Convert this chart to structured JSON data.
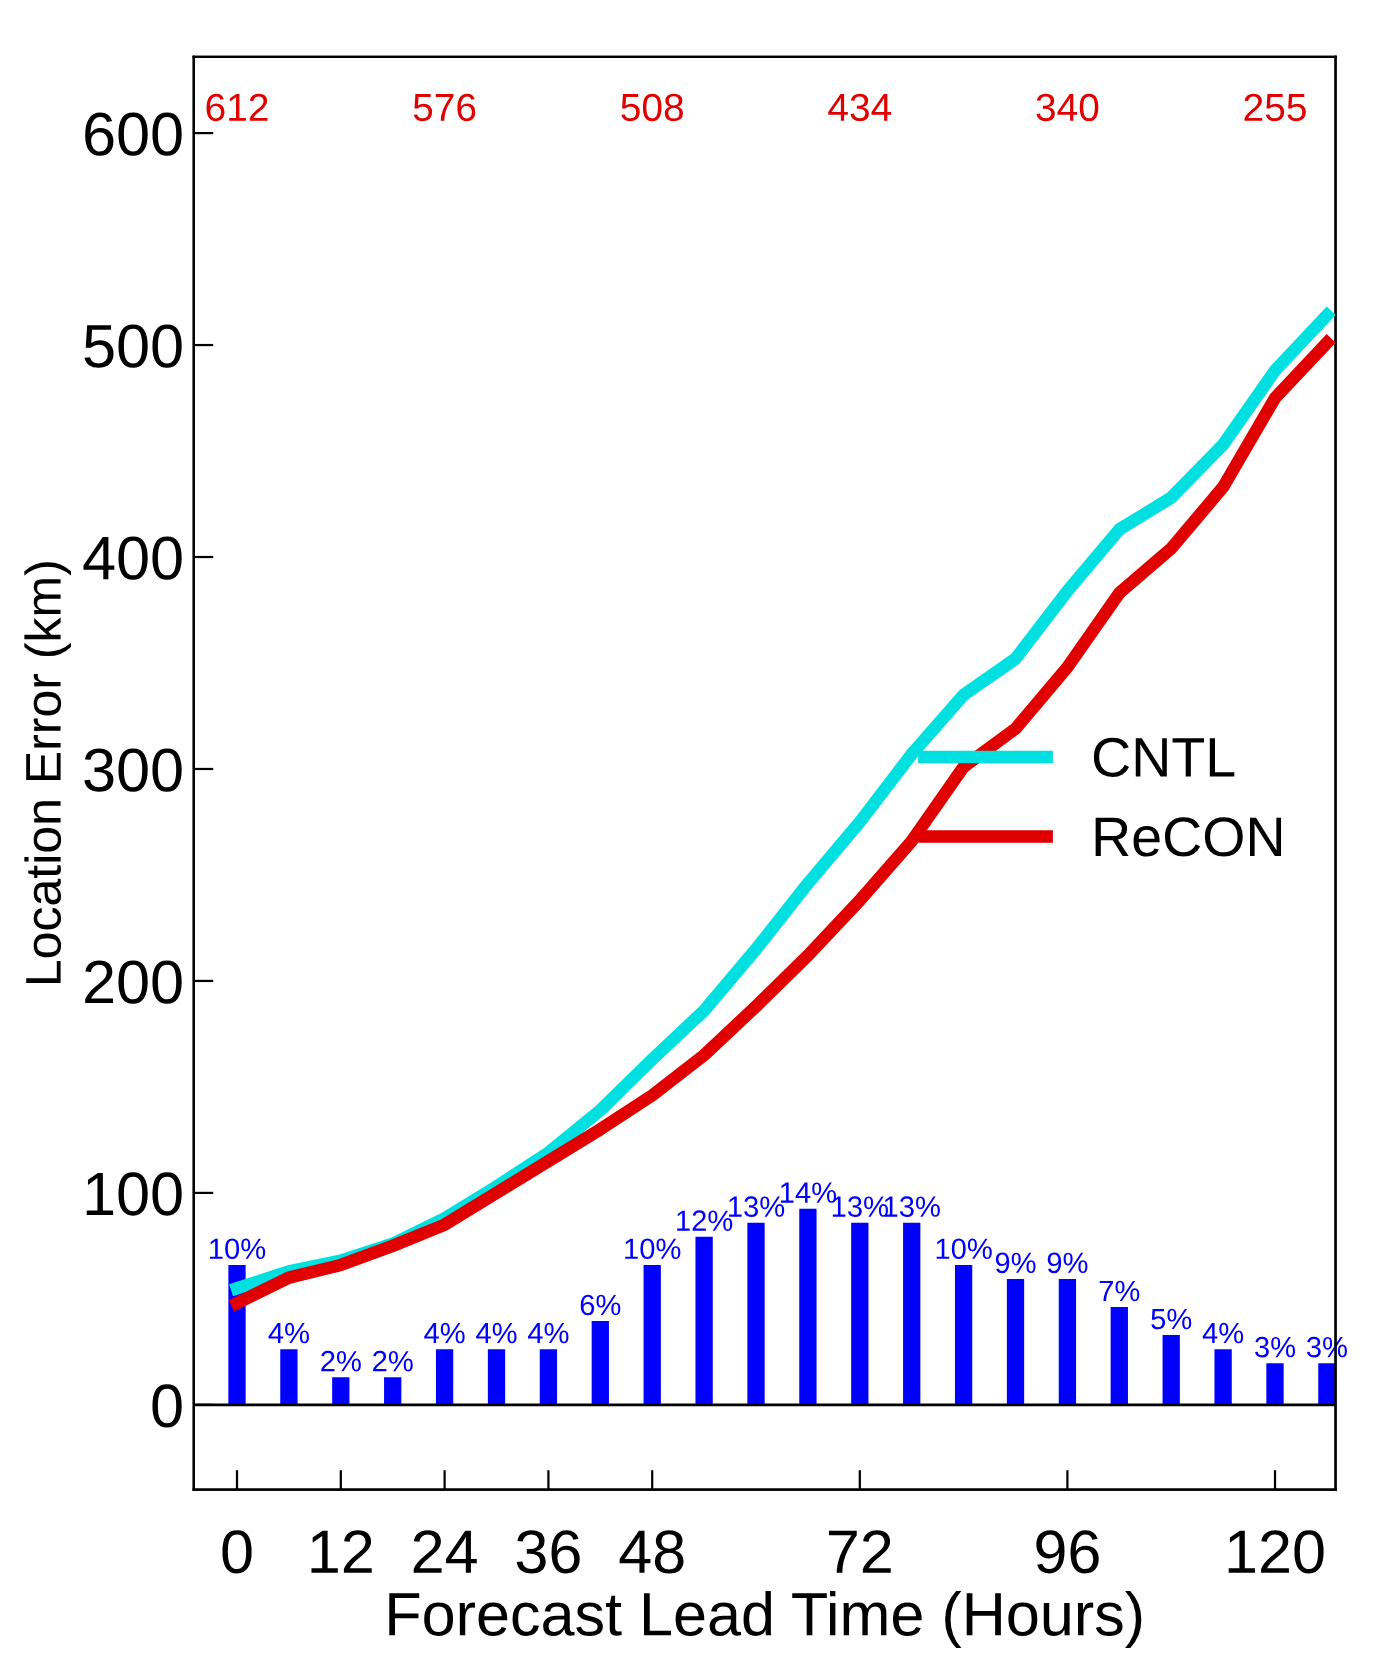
{
  "chart_data": {
    "type": "line",
    "xlabel": "Forecast Lead Time (Hours)",
    "ylabel": "Location Error (km)",
    "xlim": [
      -5,
      127
    ],
    "ylim": [
      -40,
      636
    ],
    "xticks": [
      0,
      12,
      24,
      36,
      48,
      72,
      96,
      120
    ],
    "yticks": [
      0,
      100,
      200,
      300,
      400,
      500,
      600
    ],
    "grid": false,
    "legend": "right",
    "y2lim": [
      -6,
      96
    ],
    "ref_lines": [
      {
        "axis": "y",
        "value": 0
      }
    ],
    "marker": "none",
    "line_style": "solid",
    "series": [
      {
        "name": "CNTL",
        "color": "#00e0e0",
        "x": [
          0,
          6,
          12,
          18,
          24,
          30,
          36,
          42,
          48,
          54,
          60,
          66,
          72,
          78,
          84,
          90,
          96,
          102,
          108,
          114,
          120,
          126
        ],
        "values": [
          55,
          63,
          68,
          76,
          88,
          103,
          119,
          139,
          163,
          186,
          215,
          246,
          275,
          307,
          335,
          352,
          384,
          413,
          428,
          453,
          488,
          514
        ]
      },
      {
        "name": "ReCON",
        "color": "#e00000",
        "x": [
          0,
          6,
          12,
          18,
          24,
          30,
          36,
          42,
          48,
          54,
          60,
          66,
          72,
          78,
          84,
          90,
          96,
          102,
          108,
          114,
          120,
          126
        ],
        "values": [
          48,
          60,
          66,
          75,
          85,
          100,
          115,
          130,
          146,
          165,
          188,
          212,
          238,
          266,
          301,
          319,
          348,
          383,
          404,
          433,
          475,
          501
        ]
      },
      {
        "type": "bar",
        "axis": "y2",
        "color": "#0000ff",
        "x": [
          0,
          6,
          12,
          18,
          24,
          30,
          36,
          42,
          48,
          54,
          60,
          66,
          72,
          78,
          84,
          90,
          96,
          102,
          108,
          114,
          120,
          126
        ],
        "values": [
          10,
          4,
          2,
          2,
          4,
          4,
          4,
          6,
          10,
          12,
          13,
          14,
          13,
          13,
          10,
          9,
          9,
          7,
          5,
          4,
          3,
          3
        ],
        "value_labels": [
          "10%",
          "4%",
          "2%",
          "2%",
          "4%",
          "4%",
          "4%",
          "6%",
          "10%",
          "12%",
          "13%",
          "14%",
          "13%",
          "13%",
          "10%",
          "9%",
          "9%",
          "7%",
          "5%",
          "4%",
          "3%",
          "3%"
        ]
      }
    ],
    "annotations": [
      "612",
      "576",
      "508",
      "434",
      "340",
      "255"
    ]
  }
}
